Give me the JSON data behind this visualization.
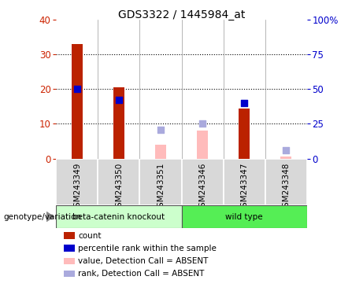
{
  "title": "GDS3322 / 1445984_at",
  "samples": [
    "GSM243349",
    "GSM243350",
    "GSM243351",
    "GSM243346",
    "GSM243347",
    "GSM243348"
  ],
  "count": [
    33,
    20.5,
    0,
    0,
    14.5,
    0.5
  ],
  "percentile_rank_pct": [
    50,
    42,
    0,
    0,
    40,
    0
  ],
  "value_absent": [
    0,
    0,
    4,
    8,
    0,
    0.5
  ],
  "rank_absent_pct": [
    0,
    0,
    21,
    25,
    0,
    6
  ],
  "left_ylim": [
    0,
    40
  ],
  "right_ylim": [
    0,
    100
  ],
  "left_yticks": [
    0,
    10,
    20,
    30,
    40
  ],
  "right_yticks": [
    0,
    25,
    50,
    75,
    100
  ],
  "right_yticklabels": [
    "0",
    "25",
    "50",
    "75",
    "100%"
  ],
  "left_ycolor": "#cc2200",
  "right_ycolor": "#0000cc",
  "bar_color_count": "#bb2200",
  "bar_color_value_absent": "#ffbbbb",
  "square_color_rank": "#0000cc",
  "square_color_rank_absent": "#aaaadd",
  "group1_label": "beta-catenin knockout",
  "group2_label": "wild type",
  "group1_color": "#ccffcc",
  "group2_color": "#55ee55",
  "group_label_prefix": "genotype/variation",
  "legend_count": "count",
  "legend_rank": "percentile rank within the sample",
  "legend_value_absent": "value, Detection Call = ABSENT",
  "legend_rank_absent": "rank, Detection Call = ABSENT",
  "bar_width": 0.25,
  "square_size": 40
}
